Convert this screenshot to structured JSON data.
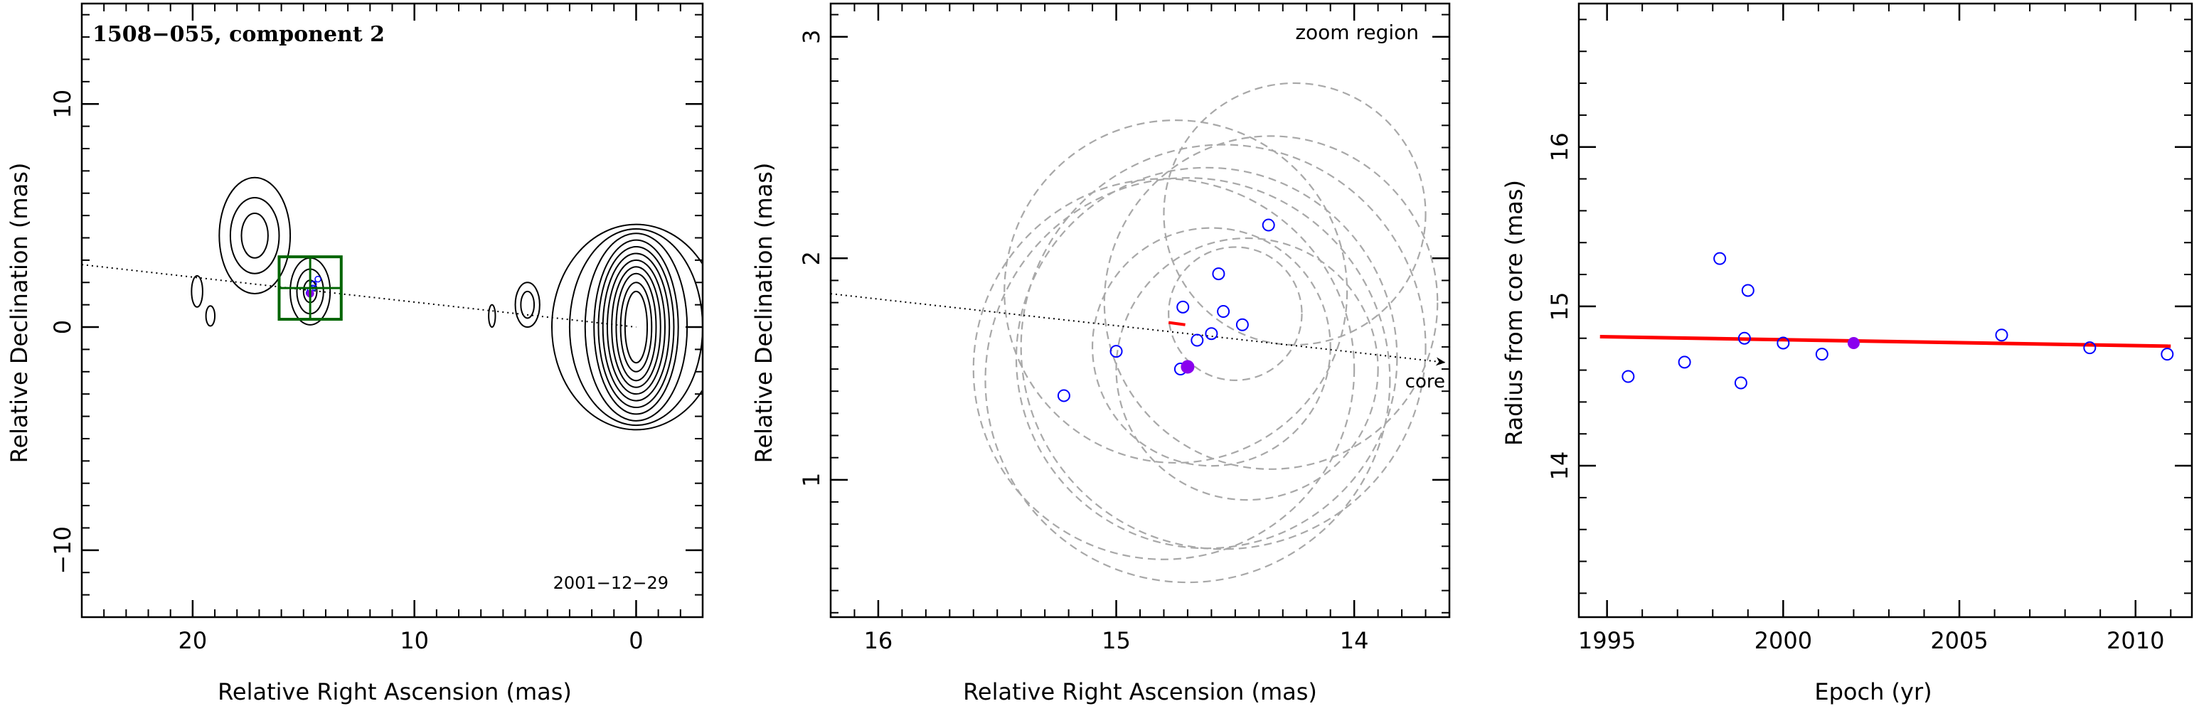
{
  "chart_data": [
    {
      "type": "contour",
      "title": "1508−055, component 2",
      "date_label": "2001−12−29",
      "xlabel": "Relative Right Ascension (mas)",
      "ylabel": "Relative Declination (mas)",
      "xlim": [
        25,
        -3
      ],
      "ylim": [
        -13,
        14.5
      ],
      "xticks": [
        20,
        10,
        0
      ],
      "xtick_labels": [
        "20",
        "10",
        "0"
      ],
      "yticks": [
        10,
        0,
        -10
      ],
      "ytick_labels": [
        "10",
        "0",
        "−10"
      ],
      "jet_axis": {
        "x1": 25,
        "y1": 2.8,
        "x2": 0,
        "y2": 0
      },
      "component_points": [
        {
          "x": 14.75,
          "y": 1.52
        },
        {
          "x": 14.7,
          "y": 1.65
        },
        {
          "x": 14.58,
          "y": 1.75
        },
        {
          "x": 14.55,
          "y": 1.93
        },
        {
          "x": 14.35,
          "y": 2.15
        }
      ],
      "highlight_point": {
        "x": 14.7,
        "y": 1.5
      },
      "zoom_box": {
        "x_from": 16.1,
        "x_to": 13.3,
        "y_from": 0.35,
        "y_to": 3.15
      },
      "contours": [
        {
          "cx": 0,
          "cy": 0,
          "levels": [
            [
              0.5,
              1.6
            ],
            [
              0.7,
              2.0
            ],
            [
              0.9,
              2.4
            ],
            [
              1.1,
              2.7
            ],
            [
              1.3,
              3.0
            ],
            [
              1.5,
              3.3
            ],
            [
              1.7,
              3.6
            ],
            [
              1.9,
              3.9
            ],
            [
              2.3,
              4.2
            ],
            [
              3.0,
              4.4
            ],
            [
              3.8,
              4.6
            ]
          ]
        },
        {
          "cx": 17.2,
          "cy": 4.1,
          "levels": [
            [
              0.6,
              1.0
            ],
            [
              1.1,
              1.7
            ],
            [
              1.6,
              2.6
            ]
          ]
        },
        {
          "cx": 14.7,
          "cy": 1.6,
          "levels": [
            [
              0.3,
              0.5
            ],
            [
              0.6,
              1.0
            ],
            [
              0.9,
              1.5
            ]
          ]
        },
        {
          "cx": 4.9,
          "cy": 1.0,
          "levels": [
            [
              0.3,
              0.6
            ],
            [
              0.55,
              1.0
            ]
          ]
        },
        {
          "cx": 19.8,
          "cy": 1.6,
          "levels": [
            [
              0.25,
              0.7
            ]
          ]
        },
        {
          "cx": 19.2,
          "cy": 0.5,
          "levels": [
            [
              0.2,
              0.45
            ]
          ]
        },
        {
          "cx": 6.5,
          "cy": 0.5,
          "levels": [
            [
              0.15,
              0.5
            ]
          ]
        }
      ]
    },
    {
      "type": "scatter",
      "zoom_label": "zoom region",
      "core_label": "core",
      "xlabel": "Relative Right Ascension (mas)",
      "ylabel": "Relative Declination (mas)",
      "xlim": [
        16.2,
        13.6
      ],
      "ylim": [
        0.38,
        3.15
      ],
      "xticks": [
        16,
        15,
        14
      ],
      "xtick_labels": [
        "16",
        "15",
        "14"
      ],
      "yticks": [
        3,
        2,
        1
      ],
      "ytick_labels": [
        "3",
        "2",
        "1"
      ],
      "jet_axis": {
        "x1": 16.2,
        "y1": 1.84,
        "x2": 13.62,
        "y2": 1.53
      },
      "points": [
        {
          "x": 15.22,
          "y": 1.38
        },
        {
          "x": 15.0,
          "y": 1.58
        },
        {
          "x": 14.73,
          "y": 1.5
        },
        {
          "x": 14.66,
          "y": 1.63
        },
        {
          "x": 14.72,
          "y": 1.78
        },
        {
          "x": 14.6,
          "y": 1.66
        },
        {
          "x": 14.57,
          "y": 1.93
        },
        {
          "x": 14.55,
          "y": 1.76
        },
        {
          "x": 14.47,
          "y": 1.7
        },
        {
          "x": 14.36,
          "y": 2.15
        }
      ],
      "highlight_point": {
        "x": 14.7,
        "y": 1.51
      },
      "error_circles": [
        {
          "cx": 14.62,
          "cy": 1.55,
          "r": 0.8
        },
        {
          "cx": 14.7,
          "cy": 1.45,
          "r": 0.85
        },
        {
          "cx": 14.8,
          "cy": 1.5,
          "r": 0.8
        },
        {
          "cx": 14.55,
          "cy": 1.6,
          "r": 0.85
        },
        {
          "cx": 14.35,
          "cy": 1.8,
          "r": 0.7
        },
        {
          "cx": 14.45,
          "cy": 1.5,
          "r": 0.55
        },
        {
          "cx": 14.75,
          "cy": 1.85,
          "r": 0.72
        },
        {
          "cx": 14.5,
          "cy": 1.75,
          "r": 0.28
        },
        {
          "cx": 14.6,
          "cy": 1.6,
          "r": 0.5
        },
        {
          "cx": 14.25,
          "cy": 2.2,
          "r": 0.55
        }
      ],
      "motion_vector": {
        "x1": 14.78,
        "y1": 1.71,
        "x2": 14.71,
        "y2": 1.7
      }
    },
    {
      "type": "scatter",
      "xlabel": "Epoch (yr)",
      "ylabel": "Radius from core (mas)",
      "xlim": [
        1994.2,
        2011.6
      ],
      "ylim": [
        13.05,
        16.9
      ],
      "xticks": [
        1995,
        2000,
        2005,
        2010
      ],
      "xtick_labels": [
        "1995",
        "2000",
        "2005",
        "2010"
      ],
      "yticks": [
        16,
        15,
        14
      ],
      "ytick_labels": [
        "16",
        "15",
        "14"
      ],
      "points": [
        {
          "x": 1995.6,
          "y": 14.56
        },
        {
          "x": 1997.2,
          "y": 14.65
        },
        {
          "x": 1998.2,
          "y": 15.3
        },
        {
          "x": 1998.8,
          "y": 14.52
        },
        {
          "x": 1998.9,
          "y": 14.8
        },
        {
          "x": 1999.0,
          "y": 15.1
        },
        {
          "x": 2000.0,
          "y": 14.77
        },
        {
          "x": 2001.1,
          "y": 14.7
        },
        {
          "x": 2006.2,
          "y": 14.82
        },
        {
          "x": 2008.7,
          "y": 14.74
        },
        {
          "x": 2010.9,
          "y": 14.7
        }
      ],
      "highlight_point": {
        "x": 2002.0,
        "y": 14.77
      },
      "fit_line": {
        "x1": 1994.8,
        "y1": 14.81,
        "x2": 2011.0,
        "y2": 14.75
      }
    }
  ],
  "colors": {
    "point": "#0000ff",
    "highlight": "#8a00ee",
    "fit": "#ff0000",
    "zoom_box": "#006400",
    "circles": "#a8a8a8"
  }
}
